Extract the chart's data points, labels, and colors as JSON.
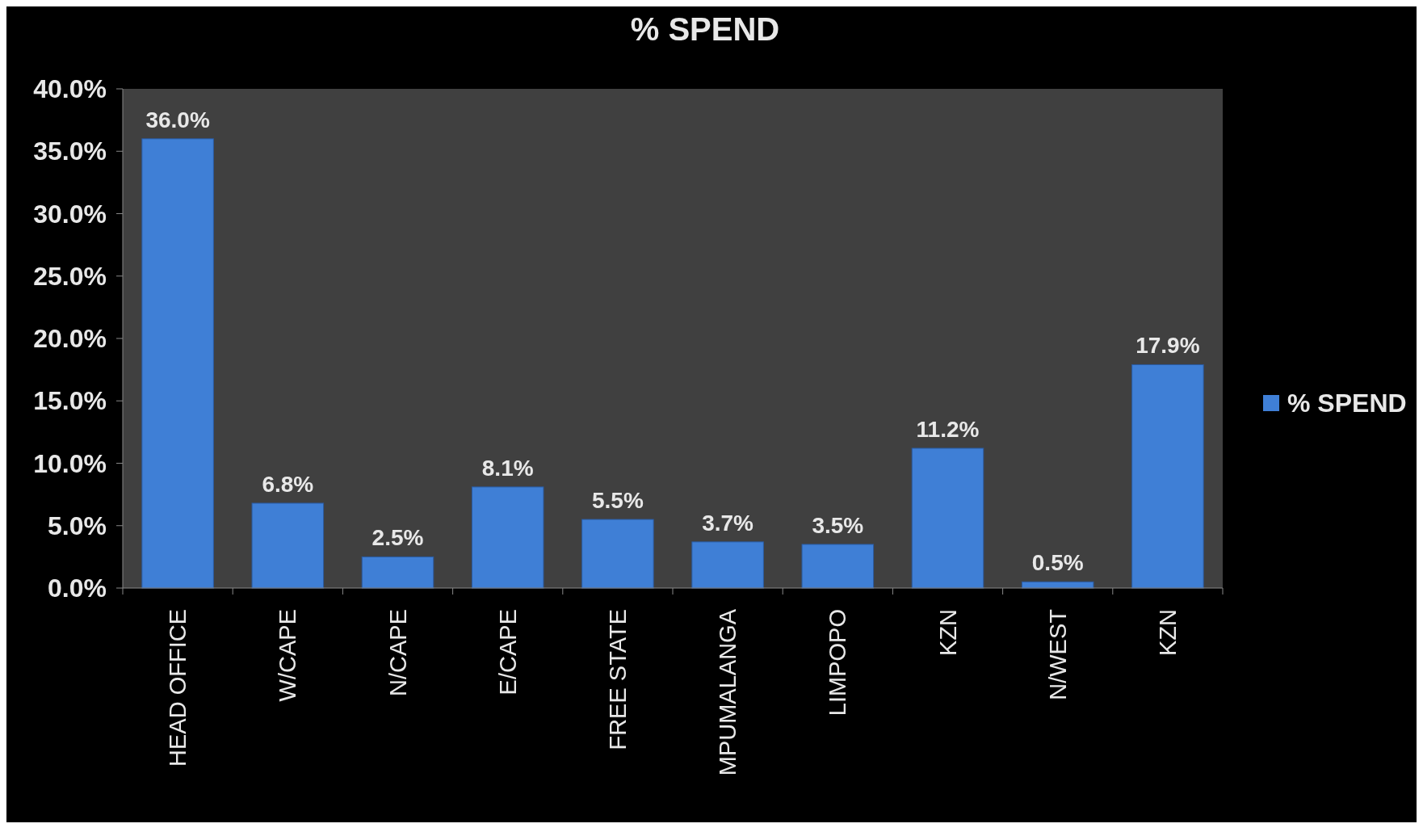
{
  "chart_data": {
    "type": "bar",
    "title": "% SPEND",
    "categories": [
      "HEAD OFFICE",
      "W/CAPE",
      "N/CAPE",
      "E/CAPE",
      "FREE STATE",
      "MPUMALANGA",
      "LIMPOPO",
      "KZN",
      "N/WEST",
      "KZN"
    ],
    "series": [
      {
        "name": "% SPEND",
        "color": "#3f7fd6",
        "values": [
          36.0,
          6.8,
          2.5,
          8.1,
          5.5,
          3.7,
          3.5,
          11.2,
          0.5,
          17.9
        ],
        "value_labels": [
          "36.0%",
          "6.8%",
          "2.5%",
          "8.1%",
          "5.5%",
          "3.7%",
          "3.5%",
          "11.2%",
          "0.5%",
          "17.9%"
        ]
      }
    ],
    "ylim": [
      0,
      40
    ],
    "yticks": [
      {
        "value": 0,
        "label": "0.0%"
      },
      {
        "value": 5,
        "label": "5.0%"
      },
      {
        "value": 10,
        "label": "10.0%"
      },
      {
        "value": 15,
        "label": "15.0%"
      },
      {
        "value": 20,
        "label": "20.0%"
      },
      {
        "value": 25,
        "label": "25.0%"
      },
      {
        "value": 30,
        "label": "30.0%"
      },
      {
        "value": 35,
        "label": "35.0%"
      },
      {
        "value": 40,
        "label": "40.0%"
      }
    ],
    "grid": false,
    "legend": "right"
  }
}
